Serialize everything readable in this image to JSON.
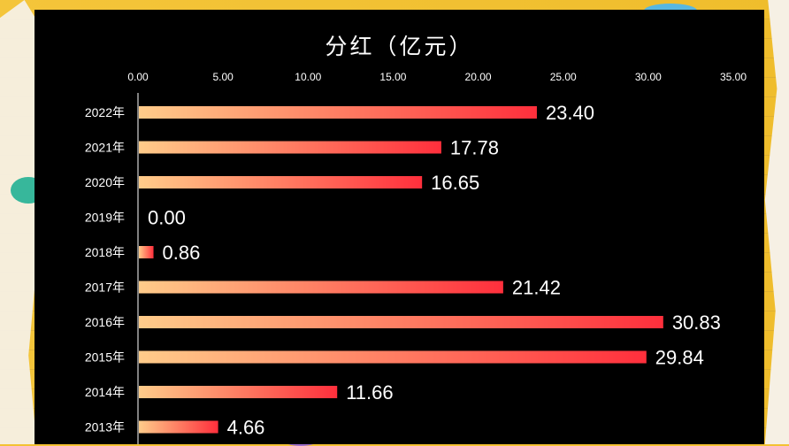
{
  "chart_data": {
    "type": "bar",
    "orientation": "horizontal",
    "title": "分红（亿元）",
    "categories": [
      "2022年",
      "2021年",
      "2020年",
      "2019年",
      "2018年",
      "2017年",
      "2016年",
      "2015年",
      "2014年",
      "2013年"
    ],
    "values": [
      23.4,
      17.78,
      16.65,
      0.0,
      0.86,
      21.42,
      30.83,
      29.84,
      11.66,
      4.66
    ],
    "data_labels": [
      "23.40",
      "17.78",
      "16.65",
      "0.00",
      "0.86",
      "21.42",
      "30.83",
      "29.84",
      "11.66",
      "4.66"
    ],
    "xlim": [
      0,
      35
    ],
    "x_ticks": [
      "0.00",
      "5.00",
      "10.00",
      "15.00",
      "20.00",
      "25.00",
      "30.00",
      "35.00"
    ],
    "x_axis_position": "top",
    "grid": false,
    "legend": "none",
    "colors": {
      "panel_background": "#000000",
      "bar_start": "#ffcc8a",
      "bar_end": "#ff2f3c",
      "text": "#ffffff",
      "page_background": "#f3c233"
    }
  }
}
